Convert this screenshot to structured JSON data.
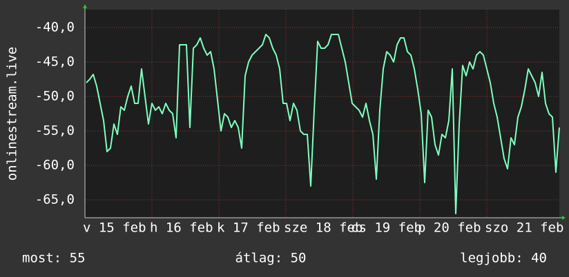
{
  "chart_data": {
    "type": "line",
    "y_label": "onlinestream.live",
    "series": [
      {
        "name": "onlinestream.live",
        "color": "#7fffbf",
        "values": [
          -48,
          -47.5,
          -46.8,
          -48.5,
          -51,
          -53.5,
          -58,
          -57.5,
          -54,
          -55.5,
          -51.5,
          -52,
          -50,
          -48.5,
          -51,
          -51,
          -46,
          -50,
          -54,
          -51,
          -52,
          -51.5,
          -52.5,
          -51,
          -52,
          -52.5,
          -56,
          -42.5,
          -42.5,
          -42.5,
          -54.5,
          -43,
          -42.5,
          -41.5,
          -43,
          -44,
          -43.5,
          -46,
          -50.5,
          -55,
          -52.5,
          -53,
          -54.5,
          -53.5,
          -54.5,
          -57.5,
          -47,
          -45,
          -44,
          -43.5,
          -43,
          -42.5,
          -41,
          -41.5,
          -43,
          -44,
          -46,
          -51,
          -51,
          -53.5,
          -51,
          -52,
          -55,
          -55.5,
          -55.5,
          -63,
          -52,
          -42,
          -43,
          -43,
          -42.5,
          -41,
          -41,
          -41,
          -43,
          -45,
          -48,
          -51,
          -51.5,
          -52,
          -53,
          -51,
          -53.5,
          -55.5,
          -62,
          -52,
          -46,
          -43.5,
          -44,
          -45,
          -42.5,
          -41.5,
          -41.5,
          -43.5,
          -44,
          -46,
          -49,
          -52.5,
          -62.5,
          -52,
          -53,
          -57,
          -58.5,
          -55.5,
          -56,
          -53.5,
          -46,
          -67,
          -54,
          -45.5,
          -47,
          -45,
          -46,
          -44,
          -43.5,
          -44,
          -46,
          -48,
          -51,
          -53,
          -56,
          -59,
          -60.5,
          -56,
          -57,
          -53,
          -51.5,
          -49,
          -46,
          -47,
          -48,
          -50,
          -46.5,
          -51,
          -52.5,
          -53,
          -61,
          -54.5
        ]
      }
    ],
    "xlim": [
      -0.4,
      137
    ],
    "xticks": [
      {
        "value": -0.4,
        "label": "v 15 feb"
      },
      {
        "value": 19,
        "label": "h 16 feb"
      },
      {
        "value": 38.4,
        "label": "k 17 feb"
      },
      {
        "value": 57.8,
        "label": "sze 18 feb"
      },
      {
        "value": 77.2,
        "label": "cs 19 feb"
      },
      {
        "value": 96.6,
        "label": "p 20 feb"
      },
      {
        "value": 116,
        "label": "szo 21 feb"
      }
    ],
    "ylim": [
      -67.6,
      -37.4
    ],
    "yticks": [
      {
        "value": -40,
        "label": "-40,0"
      },
      {
        "value": -45,
        "label": "-45,0"
      },
      {
        "value": -50,
        "label": "-50,0"
      },
      {
        "value": -55,
        "label": "-55,0"
      },
      {
        "value": -60,
        "label": "-60,0"
      },
      {
        "value": -65,
        "label": "-65,0"
      }
    ],
    "grid": true,
    "footer": [
      "most: 55",
      "átlag: 50",
      "legjobb: 40"
    ]
  }
}
